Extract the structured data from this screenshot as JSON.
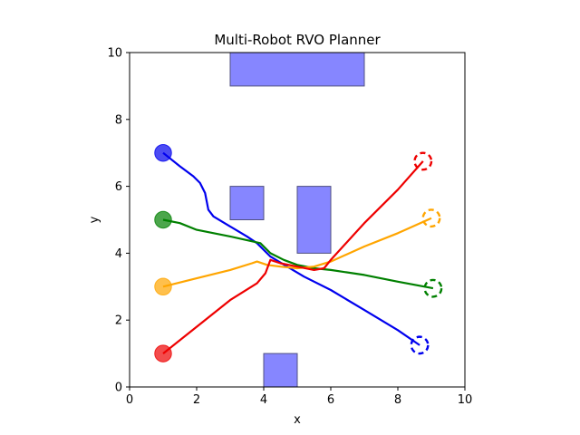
{
  "chart_data": {
    "type": "line",
    "title": "Multi-Robot RVO Planner",
    "xlabel": "x",
    "ylabel": "y",
    "xlim": [
      0,
      10
    ],
    "ylim": [
      0,
      10
    ],
    "xticks": [
      "0",
      "2",
      "4",
      "6",
      "8",
      "10"
    ],
    "yticks": [
      "0",
      "2",
      "4",
      "6",
      "8",
      "10"
    ],
    "grid": false,
    "obstacles": [
      {
        "x": 3,
        "y": 9,
        "w": 4,
        "h": 1
      },
      {
        "x": 3,
        "y": 5,
        "w": 1,
        "h": 1
      },
      {
        "x": 5,
        "y": 4,
        "w": 1,
        "h": 2
      },
      {
        "x": 4,
        "y": 0,
        "w": 1,
        "h": 1
      }
    ],
    "obstacle_color": "#8080ff",
    "robots": [
      {
        "color": "#0000ee",
        "start": [
          1,
          7
        ],
        "goal": [
          8.65,
          1.25
        ],
        "path": [
          [
            1,
            7
          ],
          [
            1.5,
            6.6
          ],
          [
            1.9,
            6.3
          ],
          [
            2.1,
            6.1
          ],
          [
            2.25,
            5.8
          ],
          [
            2.35,
            5.3
          ],
          [
            2.5,
            5.1
          ],
          [
            3.0,
            4.8
          ],
          [
            3.5,
            4.5
          ],
          [
            3.8,
            4.3
          ],
          [
            4.2,
            3.9
          ],
          [
            4.7,
            3.6
          ],
          [
            5.2,
            3.3
          ],
          [
            6.0,
            2.9
          ],
          [
            7.0,
            2.3
          ],
          [
            8.0,
            1.7
          ],
          [
            8.65,
            1.25
          ]
        ]
      },
      {
        "color": "#008000",
        "start": [
          1,
          5
        ],
        "goal": [
          9.05,
          2.95
        ],
        "path": [
          [
            1,
            5
          ],
          [
            1.5,
            4.9
          ],
          [
            2,
            4.7
          ],
          [
            3,
            4.5
          ],
          [
            3.9,
            4.3
          ],
          [
            4.2,
            4.0
          ],
          [
            4.6,
            3.8
          ],
          [
            5.0,
            3.65
          ],
          [
            5.5,
            3.55
          ],
          [
            6,
            3.5
          ],
          [
            7,
            3.35
          ],
          [
            8,
            3.15
          ],
          [
            9.05,
            2.95
          ]
        ]
      },
      {
        "color": "#ffa500",
        "start": [
          1,
          3
        ],
        "goal": [
          9,
          5.05
        ],
        "path": [
          [
            1,
            3
          ],
          [
            2,
            3.25
          ],
          [
            3,
            3.5
          ],
          [
            3.65,
            3.7
          ],
          [
            3.8,
            3.75
          ],
          [
            4.1,
            3.65
          ],
          [
            4.5,
            3.6
          ],
          [
            5.0,
            3.55
          ],
          [
            5.5,
            3.6
          ],
          [
            6,
            3.75
          ],
          [
            7,
            4.2
          ],
          [
            8,
            4.6
          ],
          [
            9,
            5.05
          ]
        ]
      },
      {
        "color": "#ee0000",
        "start": [
          1,
          1
        ],
        "goal": [
          8.75,
          6.75
        ],
        "path": [
          [
            1,
            1
          ],
          [
            2,
            1.8
          ],
          [
            3,
            2.6
          ],
          [
            3.8,
            3.1
          ],
          [
            4.05,
            3.4
          ],
          [
            4.2,
            3.8
          ],
          [
            4.5,
            3.7
          ],
          [
            5.0,
            3.6
          ],
          [
            5.5,
            3.5
          ],
          [
            5.8,
            3.55
          ],
          [
            6.0,
            3.8
          ],
          [
            7.0,
            4.9
          ],
          [
            8.0,
            5.9
          ],
          [
            8.75,
            6.75
          ]
        ]
      }
    ]
  }
}
